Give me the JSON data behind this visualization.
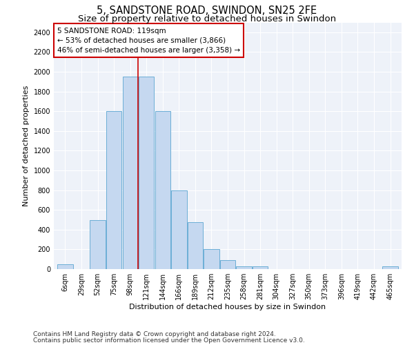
{
  "title1": "5, SANDSTONE ROAD, SWINDON, SN25 2FE",
  "title2": "Size of property relative to detached houses in Swindon",
  "xlabel": "Distribution of detached houses by size in Swindon",
  "ylabel": "Number of detached properties",
  "categories": [
    "6sqm",
    "29sqm",
    "52sqm",
    "75sqm",
    "98sqm",
    "121sqm",
    "144sqm",
    "166sqm",
    "189sqm",
    "212sqm",
    "235sqm",
    "258sqm",
    "281sqm",
    "304sqm",
    "327sqm",
    "350sqm",
    "373sqm",
    "396sqm",
    "419sqm",
    "442sqm",
    "465sqm"
  ],
  "values": [
    50,
    0,
    500,
    1600,
    1950,
    1950,
    1600,
    800,
    475,
    200,
    90,
    25,
    25,
    0,
    0,
    0,
    0,
    0,
    0,
    0,
    25
  ],
  "bar_color": "#c5d8f0",
  "bar_edge_color": "#6baed6",
  "vline_x": 4.5,
  "vline_color": "#cc0000",
  "annotation_line1": "5 SANDSTONE ROAD: 119sqm",
  "annotation_line2": "← 53% of detached houses are smaller (3,866)",
  "annotation_line3": "46% of semi-detached houses are larger (3,358) →",
  "annotation_box_facecolor": "#ffffff",
  "annotation_box_edgecolor": "#cc0000",
  "ylim": [
    0,
    2500
  ],
  "yticks": [
    0,
    200,
    400,
    600,
    800,
    1000,
    1200,
    1400,
    1600,
    1800,
    2000,
    2200,
    2400
  ],
  "footer1": "Contains HM Land Registry data © Crown copyright and database right 2024.",
  "footer2": "Contains public sector information licensed under the Open Government Licence v3.0.",
  "bg_color": "#eef2f9",
  "grid_color": "#ffffff",
  "title1_fontsize": 10.5,
  "title2_fontsize": 9.5,
  "axis_label_fontsize": 8,
  "tick_fontsize": 7,
  "annotation_fontsize": 7.5,
  "footer_fontsize": 6.5
}
